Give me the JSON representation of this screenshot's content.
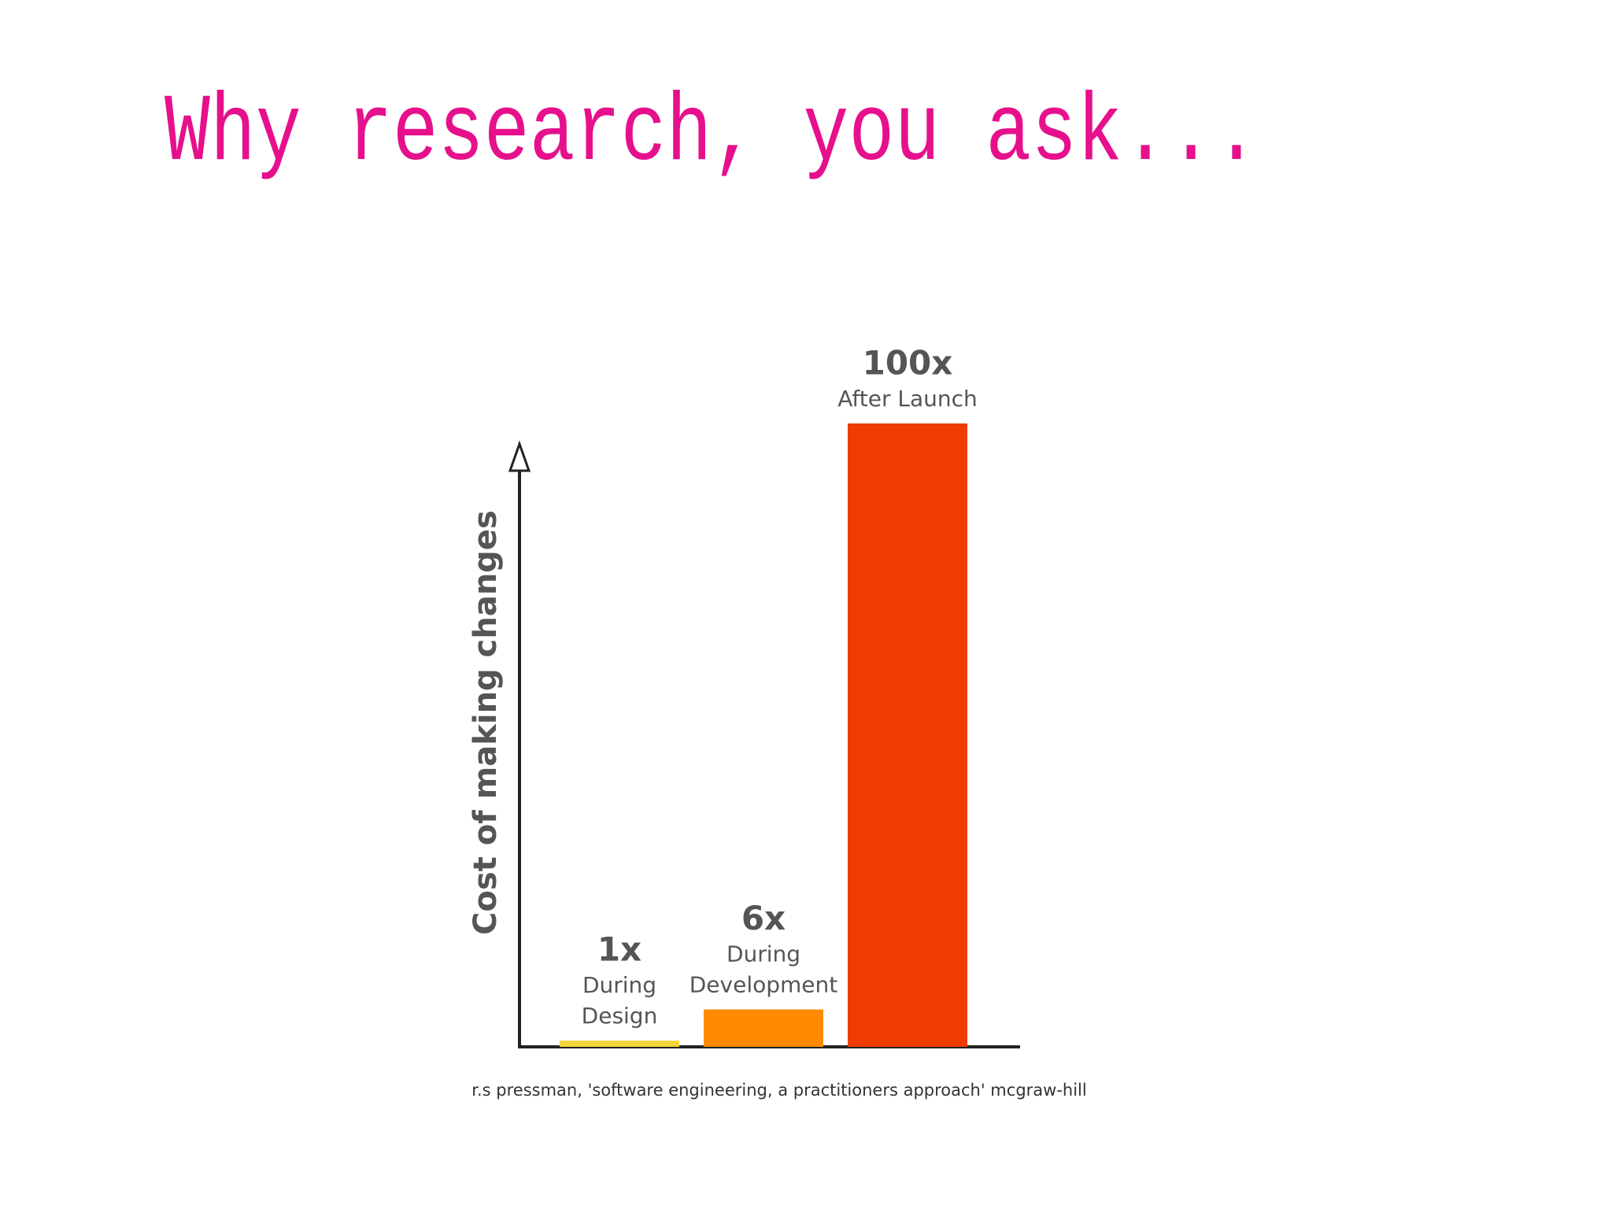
{
  "chart_data": {
    "type": "bar",
    "title": "Why research, you ask...",
    "y_label": "Cost of making changes",
    "categories": [
      "During\nDesign",
      "During\nDevelopment",
      "After Launch"
    ],
    "values": [
      1,
      6,
      100
    ],
    "value_labels": [
      "1x",
      "6x",
      "100x"
    ],
    "colors": [
      "#f2d43c",
      "#ff8a00",
      "#f03c00"
    ],
    "ylim": [
      0,
      100
    ],
    "source": "r.s pressman, 'software engineering, a practitioners approach' mcgraw-hill"
  }
}
